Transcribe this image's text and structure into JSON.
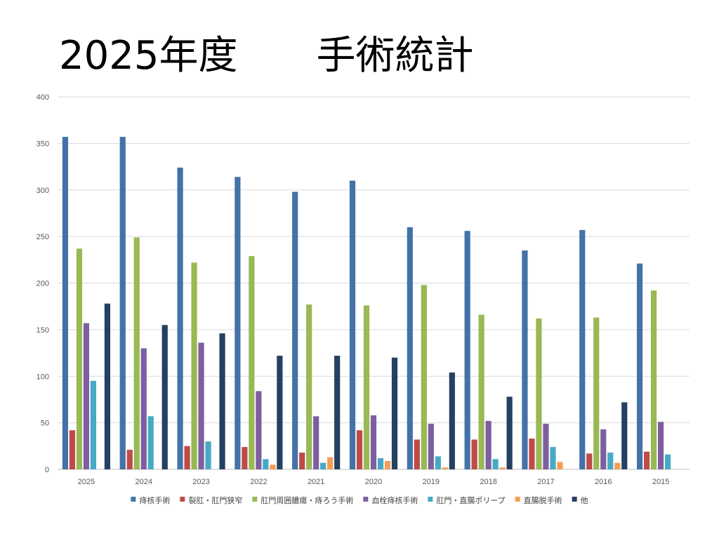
{
  "page": {
    "title": "2025年度　　手術統計"
  },
  "chart_data": {
    "type": "bar",
    "title": "",
    "xlabel": "",
    "ylabel": "",
    "ylim": [
      0,
      400
    ],
    "yticks": [
      0,
      50,
      100,
      150,
      200,
      250,
      300,
      350,
      400
    ],
    "grid": true,
    "legend_position": "bottom",
    "categories": [
      "2025",
      "2024",
      "2023",
      "2022",
      "2021",
      "2020",
      "2019",
      "2018",
      "2017",
      "2016",
      "2015"
    ],
    "series": [
      {
        "name": "痔核手術",
        "color": "#4472A8",
        "values": [
          357,
          357,
          324,
          314,
          298,
          310,
          260,
          256,
          235,
          257,
          221
        ]
      },
      {
        "name": "裂肛・肛門狭窄",
        "color": "#BE4B48",
        "values": [
          42,
          21,
          25,
          24,
          18,
          42,
          32,
          32,
          33,
          17,
          19
        ]
      },
      {
        "name": "肛門周囲膿瘍・痔ろう手術",
        "color": "#98B954",
        "values": [
          237,
          249,
          222,
          229,
          177,
          176,
          198,
          166,
          162,
          163,
          192
        ]
      },
      {
        "name": "血栓痔核手術",
        "color": "#7D5FA0",
        "values": [
          157,
          130,
          136,
          84,
          57,
          58,
          49,
          52,
          49,
          43,
          51
        ]
      },
      {
        "name": "肛門・直腸ポリープ",
        "color": "#46AAC5",
        "values": [
          95,
          57,
          30,
          11,
          7,
          12,
          14,
          11,
          24,
          18,
          16
        ]
      },
      {
        "name": "直腸脱手術",
        "color": "#F59D56",
        "values": [
          0,
          0,
          0,
          5,
          13,
          9,
          2,
          2,
          8,
          7,
          0
        ]
      },
      {
        "name": "他",
        "color": "#254061",
        "values": [
          178,
          155,
          146,
          122,
          122,
          120,
          104,
          78,
          0,
          72,
          0
        ]
      }
    ]
  }
}
